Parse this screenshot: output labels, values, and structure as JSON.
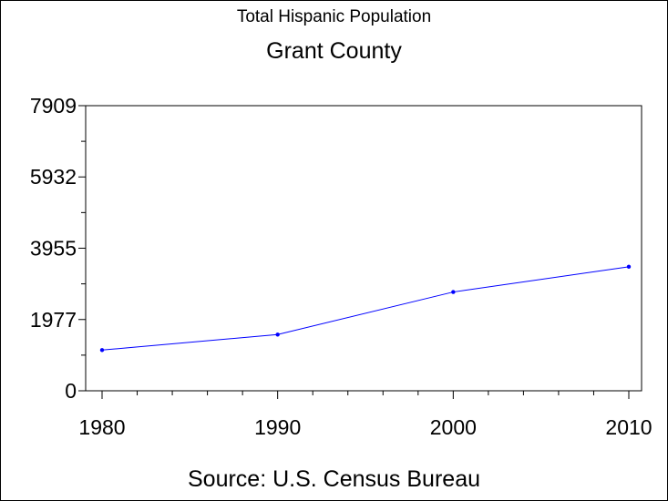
{
  "chart_data": {
    "type": "line",
    "title": "Total Hispanic Population",
    "subtitle": "Grant County",
    "footnote": "Source: U.S. Census Bureau",
    "xlabel": "",
    "ylabel": "",
    "x": [
      1980,
      1990,
      2000,
      2010
    ],
    "x_tick_labels": [
      "1980",
      "1990",
      "2000",
      "2010"
    ],
    "y_tick_labels": [
      "0",
      "1977",
      "3955",
      "5932",
      "7909"
    ],
    "y_ticks": [
      0,
      1977,
      3955,
      5932,
      7909
    ],
    "xlim": [
      1980,
      2010
    ],
    "ylim": [
      0,
      7909
    ],
    "grid": false,
    "series": [
      {
        "values": [
          1130,
          1560,
          2740,
          3440
        ],
        "color": "#0000ff"
      }
    ]
  }
}
